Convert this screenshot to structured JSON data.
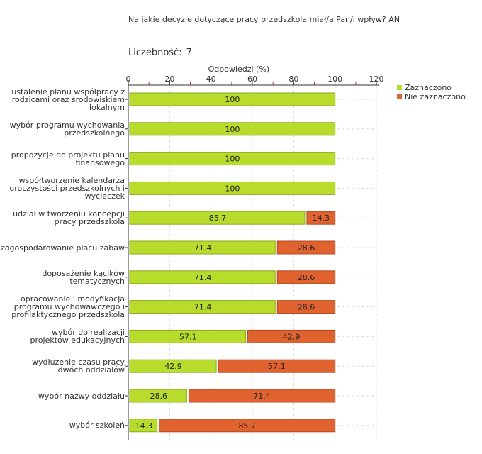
{
  "question": "Na jakie decyzje dotyczące pracy przedszkola miał/a Pan/i wpływ? AN",
  "count_label": "Liczebność:",
  "count_value": "7",
  "colors": {
    "selected": "#b8dc2c",
    "selected_border": "#8aa81e",
    "not_selected": "#e0632f",
    "not_selected_border": "#b04a20",
    "grid": "#dddddd",
    "tick_red": "#cc3333"
  },
  "chart_data": {
    "type": "bar",
    "orientation": "horizontal",
    "stacked": true,
    "xlabel": "Odpowiedzi (%)",
    "xlim": [
      0,
      120
    ],
    "xticks": [
      0,
      20,
      40,
      60,
      80,
      100,
      120
    ],
    "legend_position": "top-right",
    "categories": [
      [
        "ustalenie planu współpracy z",
        "rodzicami oraz środowiskiem",
        "lokalnym"
      ],
      [
        "wybór programu wychowania",
        "przedszkolnego"
      ],
      [
        "propozycje do projektu planu",
        "finansowego"
      ],
      [
        "współtworzenie kalendarza",
        "uroczystości przedszkolnych i",
        "wycieczek"
      ],
      [
        "udział w tworzeniu koncepcji",
        "pracy przedszkola"
      ],
      [
        "zagospodarowanie placu zabaw"
      ],
      [
        "doposażenie kącików",
        "tematycznych"
      ],
      [
        "opracowanie i modyfikacja",
        "programu wychowawczego i",
        "profilaktycznego przedszkola"
      ],
      [
        "wybór do realizacji",
        "projektów edukacyjnych"
      ],
      [
        "wydłużenie czasu pracy",
        "dwóch oddziałów"
      ],
      [
        "wybór nazwy oddziału"
      ],
      [
        "wybór szkoleń"
      ]
    ],
    "series": [
      {
        "name": "Zaznaczono",
        "values": [
          100,
          100,
          100,
          100,
          85.7,
          71.4,
          71.4,
          71.4,
          57.1,
          42.9,
          28.6,
          14.3
        ]
      },
      {
        "name": "Nie zaznaczono",
        "values": [
          0,
          0,
          0,
          0,
          14.3,
          28.6,
          28.6,
          28.6,
          42.9,
          57.1,
          71.4,
          85.7
        ]
      }
    ]
  }
}
